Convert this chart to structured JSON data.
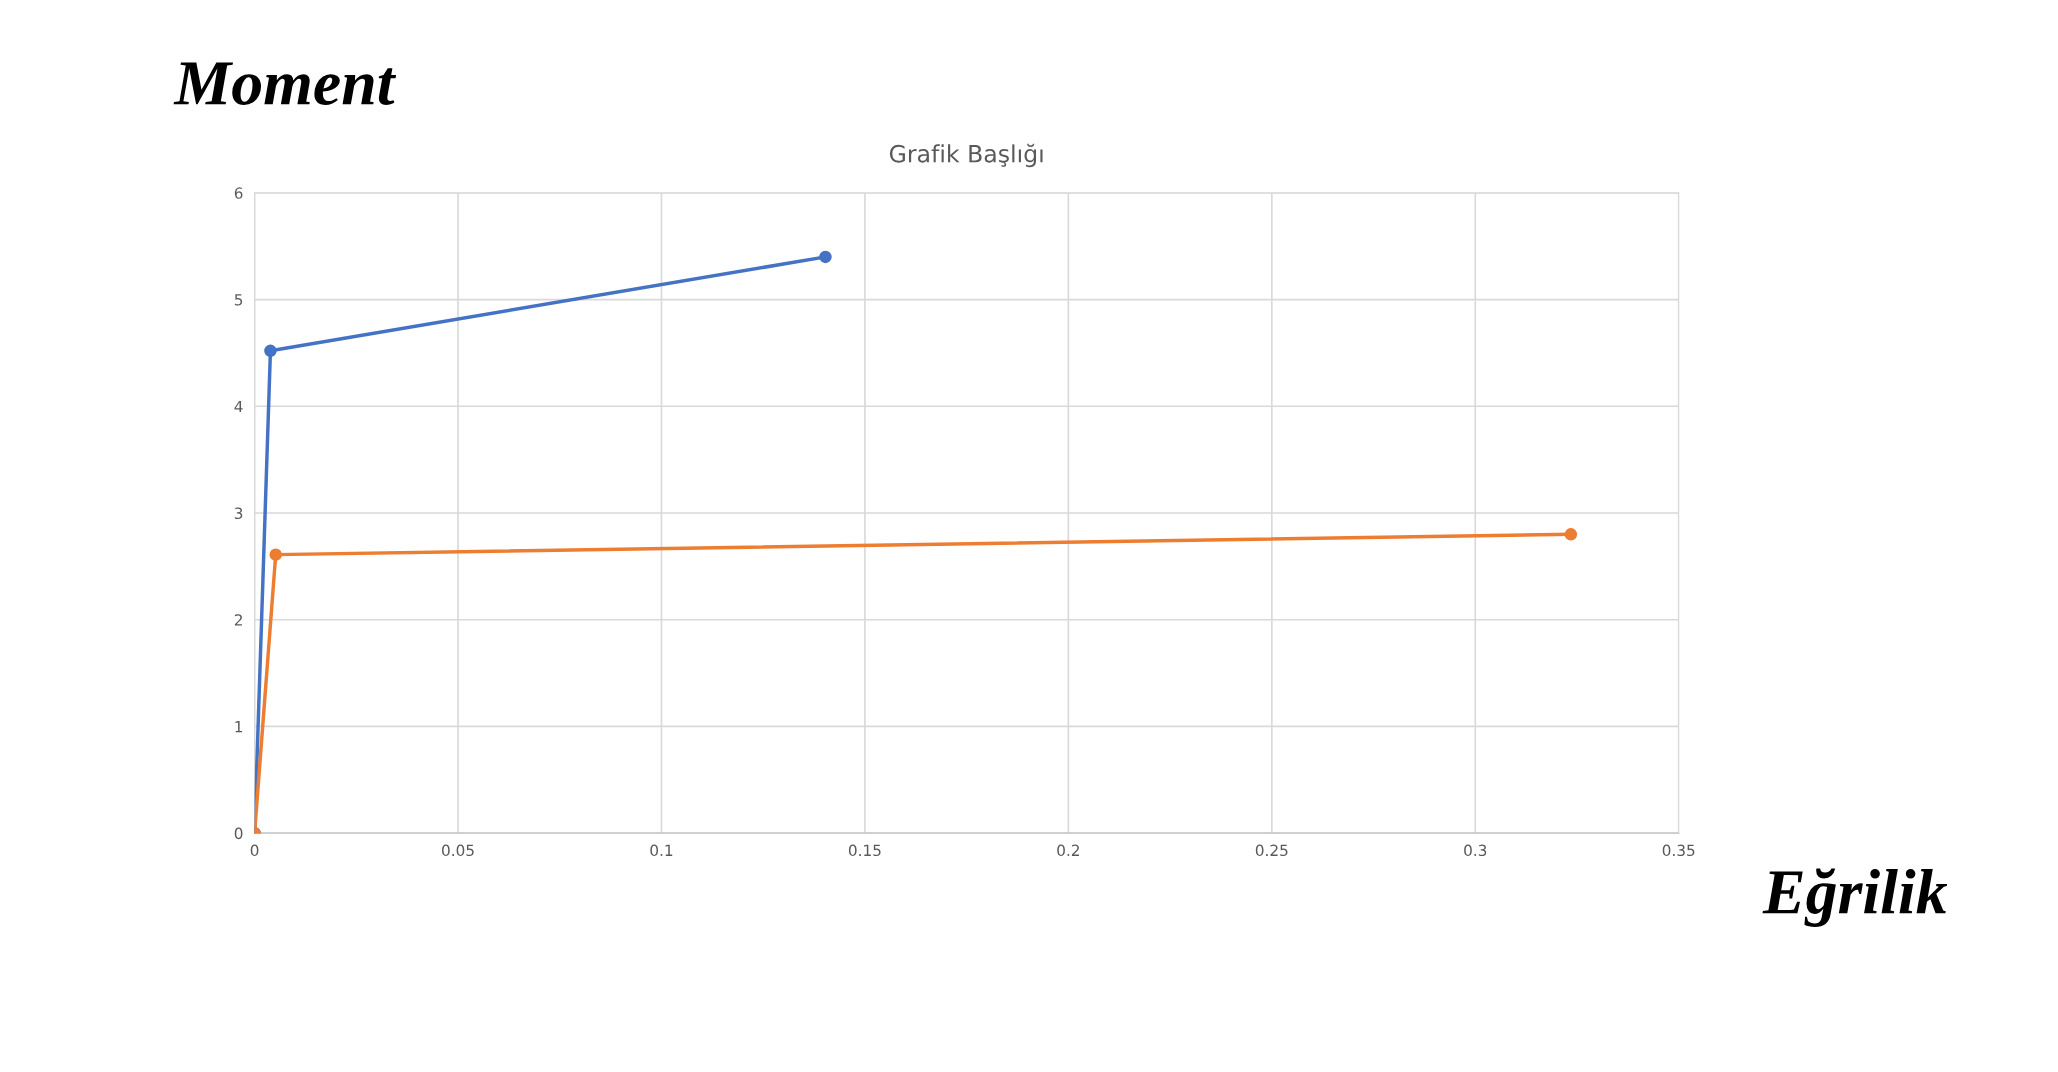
{
  "chart_data": {
    "type": "line",
    "title": "Grafik Başlığı",
    "xlabel": "Eğrilik",
    "ylabel": "Moment",
    "series": [
      {
        "color": "#4472c4",
        "x": [
          0,
          0.0039,
          0.1403
        ],
        "values": [
          0,
          4.52,
          5.4
        ]
      },
      {
        "color": "#ed7d31",
        "x": [
          0,
          0.0052,
          0.3235
        ],
        "values": [
          0,
          2.61,
          2.8
        ]
      }
    ],
    "xlim": [
      0,
      0.35
    ],
    "xticks": [
      0,
      0.05,
      0.1,
      0.15,
      0.2,
      0.25,
      0.3,
      0.35
    ],
    "ylim": [
      0,
      6
    ],
    "yticks": [
      0,
      1,
      2,
      3,
      4,
      5,
      6
    ],
    "grid": true,
    "marker": "circle",
    "line_style": "solid",
    "legend": false
  }
}
